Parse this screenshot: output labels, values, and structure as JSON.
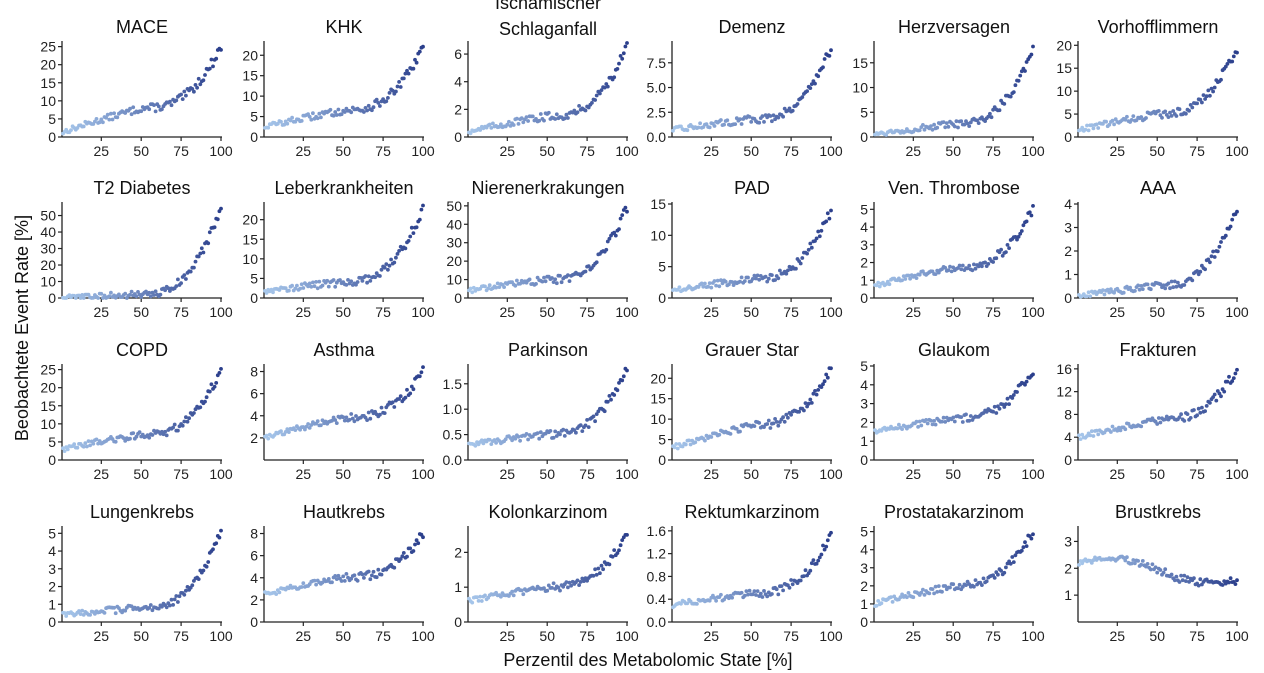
{
  "figure": {
    "ylabel": "Beobachtete Event Rate [%]",
    "xlabel": "Perzentil des Metabolomic State [%]",
    "xticks": [
      25,
      50,
      75,
      100
    ],
    "colors": {
      "light": "#a8c8ec",
      "dark": "#2b3f8c"
    }
  },
  "chart_data": [
    {
      "type": "scatter",
      "title": "MACE",
      "ylim": [
        0,
        26
      ],
      "yticks": [
        0,
        5,
        10,
        15,
        20,
        25
      ],
      "x_range": [
        1,
        100
      ],
      "y_start": 1.3,
      "y_mid": 8,
      "y_end": 25
    },
    {
      "type": "scatter",
      "title": "KHK",
      "ylim": [
        0,
        23
      ],
      "yticks": [
        0,
        5,
        10,
        15,
        20
      ],
      "x_range": [
        1,
        100
      ],
      "y_start": 2.5,
      "y_mid": 6.5,
      "y_end": 22
    },
    {
      "type": "scatter",
      "title_lines": [
        "Ischämischer",
        "Schlaganfall"
      ],
      "ylim": [
        0,
        6.8
      ],
      "yticks": [
        0,
        2,
        4,
        6
      ],
      "x_range": [
        1,
        100
      ],
      "y_start": 0.4,
      "y_mid": 1.5,
      "y_end": 6.5
    },
    {
      "type": "scatter",
      "title": "Demenz",
      "ylim": [
        0,
        9.5
      ],
      "yticks": [
        "0.0",
        "2.5",
        "5.0",
        "7.5"
      ],
      "x_range": [
        1,
        100
      ],
      "y_start": 0.7,
      "y_mid": 1.8,
      "y_end": 9
    },
    {
      "type": "scatter",
      "title": "Herzversagen",
      "ylim": [
        0,
        19
      ],
      "yticks": [
        0,
        5,
        10,
        15
      ],
      "x_range": [
        1,
        100
      ],
      "y_start": 0.6,
      "y_mid": 2.5,
      "y_end": 18
    },
    {
      "type": "scatter",
      "title": "Vorhofflimmern",
      "ylim": [
        0,
        20.5
      ],
      "yticks": [
        0,
        5,
        10,
        15,
        20
      ],
      "x_range": [
        1,
        100
      ],
      "y_start": 1.5,
      "y_mid": 5,
      "y_end": 19.5
    },
    {
      "type": "scatter",
      "title": "T2 Diabetes",
      "ylim": [
        0,
        57
      ],
      "yticks": [
        0,
        10,
        20,
        30,
        40,
        50
      ],
      "x_range": [
        1,
        100
      ],
      "y_start": 0.2,
      "y_mid": 2,
      "y_end": 55
    },
    {
      "type": "scatter",
      "title": "Leberkrankheiten",
      "ylim": [
        0,
        24
      ],
      "yticks": [
        0,
        5,
        10,
        15,
        20
      ],
      "x_range": [
        1,
        100
      ],
      "y_start": 1.8,
      "y_mid": 4,
      "y_end": 23
    },
    {
      "type": "scatter",
      "title": "Nierenerkrakungen",
      "ylim": [
        0,
        51
      ],
      "yticks": [
        0,
        10,
        20,
        30,
        40,
        50
      ],
      "x_range": [
        1,
        100
      ],
      "y_start": 4,
      "y_mid": 10,
      "y_end": 49
    },
    {
      "type": "scatter",
      "title": "PAD",
      "ylim": [
        0,
        15
      ],
      "yticks": [
        0,
        5,
        10,
        15
      ],
      "x_range": [
        1,
        100
      ],
      "y_start": 1.2,
      "y_mid": 3,
      "y_end": 14
    },
    {
      "type": "scatter",
      "title": "Ven. Thrombose",
      "ylim": [
        0,
        5.3
      ],
      "yticks": [
        0,
        1,
        2,
        3,
        4,
        5
      ],
      "x_range": [
        1,
        100
      ],
      "y_start": 0.7,
      "y_mid": 1.7,
      "y_end": 5
    },
    {
      "type": "scatter",
      "title": "AAA",
      "ylim": [
        0,
        4
      ],
      "yticks": [
        0,
        1,
        2,
        3,
        4
      ],
      "x_range": [
        1,
        100
      ],
      "y_start": 0.1,
      "y_mid": 0.5,
      "y_end": 3.8
    },
    {
      "type": "scatter",
      "title": "COPD",
      "ylim": [
        0,
        26
      ],
      "yticks": [
        0,
        5,
        10,
        15,
        20,
        25
      ],
      "x_range": [
        1,
        100
      ],
      "y_start": 3,
      "y_mid": 7,
      "y_end": 25
    },
    {
      "type": "scatter",
      "title": "Asthma",
      "ylim": [
        0,
        8.5
      ],
      "yticks": [
        2,
        4,
        6,
        8
      ],
      "x_range": [
        1,
        100
      ],
      "y_start": 2,
      "y_mid": 3.8,
      "y_end": 8
    },
    {
      "type": "scatter",
      "title": "Parkinson",
      "ylim": [
        0,
        1.85
      ],
      "yticks": [
        "0.0",
        "0.5",
        "1.0",
        "1.5"
      ],
      "x_range": [
        1,
        100
      ],
      "y_start": 0.3,
      "y_mid": 0.5,
      "y_end": 1.8
    },
    {
      "type": "scatter",
      "title": "Grauer Star",
      "ylim": [
        0,
        23
      ],
      "yticks": [
        0,
        5,
        10,
        15,
        20
      ],
      "x_range": [
        1,
        100
      ],
      "y_start": 3,
      "y_mid": 8.5,
      "y_end": 22
    },
    {
      "type": "scatter",
      "title": "Glaukom",
      "ylim": [
        0,
        5
      ],
      "yticks": [
        0,
        1,
        2,
        3,
        4,
        5
      ],
      "x_range": [
        1,
        100
      ],
      "y_start": 1.5,
      "y_mid": 2.2,
      "y_end": 4.8
    },
    {
      "type": "scatter",
      "title": "Frakturen",
      "ylim": [
        0,
        16.5
      ],
      "yticks": [
        0,
        4,
        8,
        12,
        16
      ],
      "x_range": [
        1,
        100
      ],
      "y_start": 4,
      "y_mid": 7,
      "y_end": 16
    },
    {
      "type": "scatter",
      "title": "Lungenkrebs",
      "ylim": [
        0,
        5.3
      ],
      "yticks": [
        0,
        1,
        2,
        3,
        4,
        5
      ],
      "x_range": [
        1,
        100
      ],
      "y_start": 0.4,
      "y_mid": 0.8,
      "y_end": 5
    },
    {
      "type": "scatter",
      "title": "Hautkrebs",
      "ylim": [
        0,
        8.5
      ],
      "yticks": [
        0,
        2,
        4,
        6,
        8
      ],
      "x_range": [
        1,
        100
      ],
      "y_start": 2.5,
      "y_mid": 4,
      "y_end": 8
    },
    {
      "type": "scatter",
      "title": "Kolonkarzinom",
      "ylim": [
        0,
        2.7
      ],
      "yticks": [
        0,
        1,
        2
      ],
      "x_range": [
        1,
        100
      ],
      "y_start": 0.6,
      "y_mid": 1,
      "y_end": 2.5
    },
    {
      "type": "scatter",
      "title": "Rektumkarzinom",
      "ylim": [
        0,
        1.65
      ],
      "yticks": [
        "0.0",
        "0.4",
        "0.8",
        "1.2",
        "1.6"
      ],
      "x_range": [
        1,
        100
      ],
      "y_start": 0.3,
      "y_mid": 0.5,
      "y_end": 1.5
    },
    {
      "type": "scatter",
      "title": "Prostatakarzinom",
      "ylim": [
        0,
        5.2
      ],
      "yticks": [
        0,
        1,
        2,
        3,
        4,
        5
      ],
      "x_range": [
        1,
        100
      ],
      "y_start": 1,
      "y_mid": 2,
      "y_end": 5
    },
    {
      "type": "scatter",
      "title": "Brustkrebs",
      "ylim": [
        0,
        3.5
      ],
      "yticks": [
        1,
        2,
        3
      ],
      "x_range": [
        1,
        100
      ],
      "y_start": 2.2,
      "y_mid": 2.3,
      "y_end": 1.6
    }
  ]
}
